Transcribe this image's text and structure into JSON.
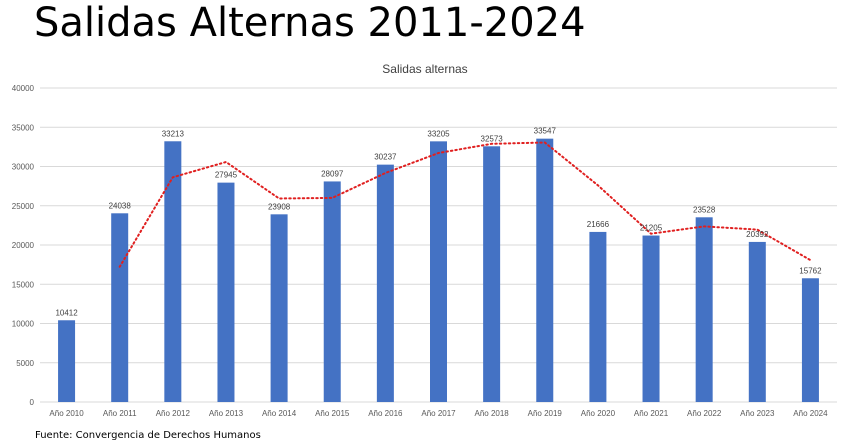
{
  "slide": {
    "title": "Salidas Alternas 2011-2024",
    "source": "Fuente: Convergencia de Derechos Humanos"
  },
  "colors": {
    "bar": "#4472c4",
    "trendline": "#e02020",
    "grid": "#d9d9d9"
  },
  "chart_data": {
    "type": "bar",
    "title": "Salidas alternas",
    "categories": [
      "Año 2010",
      "Año 2011",
      "Año 2012",
      "Año 2013",
      "Año 2014",
      "Año 2015",
      "Año 2016",
      "Año 2017",
      "Año 2018",
      "Año 2019",
      "Año 2020",
      "Año 2021",
      "Año 2022",
      "Año 2023",
      "Año 2024"
    ],
    "values": [
      10412,
      24038,
      33213,
      27945,
      23908,
      28097,
      30237,
      33205,
      32573,
      33547,
      21666,
      21205,
      23528,
      20392,
      15762
    ],
    "ylim": [
      0,
      40000
    ],
    "yticks": [
      0,
      5000,
      10000,
      15000,
      20000,
      25000,
      30000,
      35000,
      40000
    ],
    "grid": true,
    "trendline": {
      "type": "moving-average",
      "style": "dotted",
      "period": 2
    }
  }
}
